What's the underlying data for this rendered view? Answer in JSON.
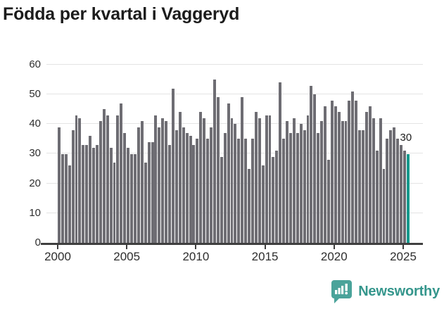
{
  "title": "Födda per kvartal i Vaggeryd",
  "branding": {
    "name": "Newsworthy",
    "logo_color": "#4aa39a",
    "text_color": "#35968c"
  },
  "chart_data": {
    "type": "bar",
    "title": "Födda per kvartal i Vaggeryd",
    "start_period": "2000Q1",
    "end_period": "2025Q2",
    "frequency": "quarterly",
    "values": [
      39,
      30,
      30,
      26,
      38,
      43,
      42,
      33,
      33,
      36,
      32,
      33,
      41,
      45,
      43,
      32,
      27,
      43,
      47,
      37,
      32,
      30,
      30,
      39,
      41,
      27,
      34,
      34,
      43,
      39,
      42,
      41,
      33,
      52,
      38,
      44,
      39,
      37,
      36,
      33,
      35,
      44,
      42,
      35,
      39,
      55,
      49,
      29,
      37,
      47,
      42,
      40,
      35,
      49,
      35,
      25,
      35,
      44,
      42,
      26,
      43,
      43,
      29,
      31,
      54,
      35,
      41,
      37,
      42,
      37,
      40,
      38,
      43,
      53,
      50,
      37,
      41,
      46,
      28,
      48,
      46,
      44,
      41,
      41,
      48,
      51,
      48,
      38,
      38,
      44,
      46,
      42,
      31,
      42,
      25,
      35,
      38,
      39,
      35,
      33,
      31,
      30
    ],
    "xlabel": "",
    "ylabel": "",
    "x_tick_labels": [
      "2000",
      "2005",
      "2010",
      "2015",
      "2020",
      "2025"
    ],
    "y_tick_labels": [
      "0",
      "10",
      "20",
      "30",
      "40",
      "50",
      "60"
    ],
    "y_ticks": [
      0,
      10,
      20,
      30,
      40,
      50,
      60
    ],
    "ylim": [
      0,
      60
    ],
    "grid": true,
    "legend": false,
    "bar_color": "#6e6d73",
    "highlight": {
      "period": "2025Q2",
      "value": 30,
      "label": "30",
      "color": "#14988b"
    }
  }
}
